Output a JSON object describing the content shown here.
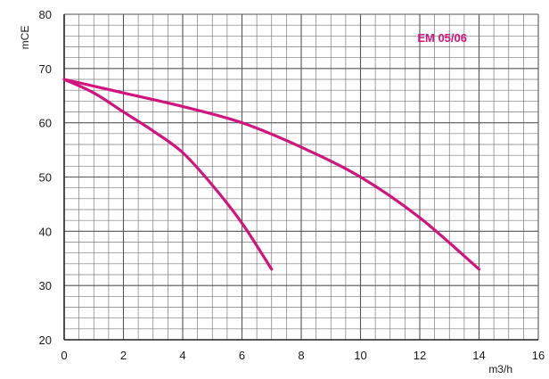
{
  "chart_data": {
    "type": "line",
    "title": "",
    "xlabel": "m3/h",
    "ylabel": "mCE",
    "xlim": [
      0,
      16
    ],
    "ylim": [
      20,
      80
    ],
    "x_ticks": [
      0,
      2,
      4,
      6,
      8,
      10,
      12,
      14,
      16
    ],
    "y_ticks": [
      20,
      30,
      40,
      50,
      60,
      70,
      80
    ],
    "grid": true,
    "minor_grid": {
      "x_step": 0.5,
      "y_step": 2
    },
    "annotation": "EM 05/06",
    "colors": {
      "series": "#d2147e",
      "grid": "#7a7a7a",
      "axis": "#222222",
      "annotation": "#d2147e"
    },
    "series": [
      {
        "x": [
          0,
          1,
          2,
          3,
          4,
          5,
          6,
          7
        ],
        "y": [
          68,
          65.5,
          62,
          58.5,
          54.5,
          48.5,
          41.5,
          33
        ]
      },
      {
        "x": [
          0,
          2,
          4,
          6,
          8,
          10,
          12,
          14
        ],
        "y": [
          68,
          65.5,
          63,
          60,
          55.5,
          50,
          42.5,
          33
        ]
      }
    ]
  }
}
